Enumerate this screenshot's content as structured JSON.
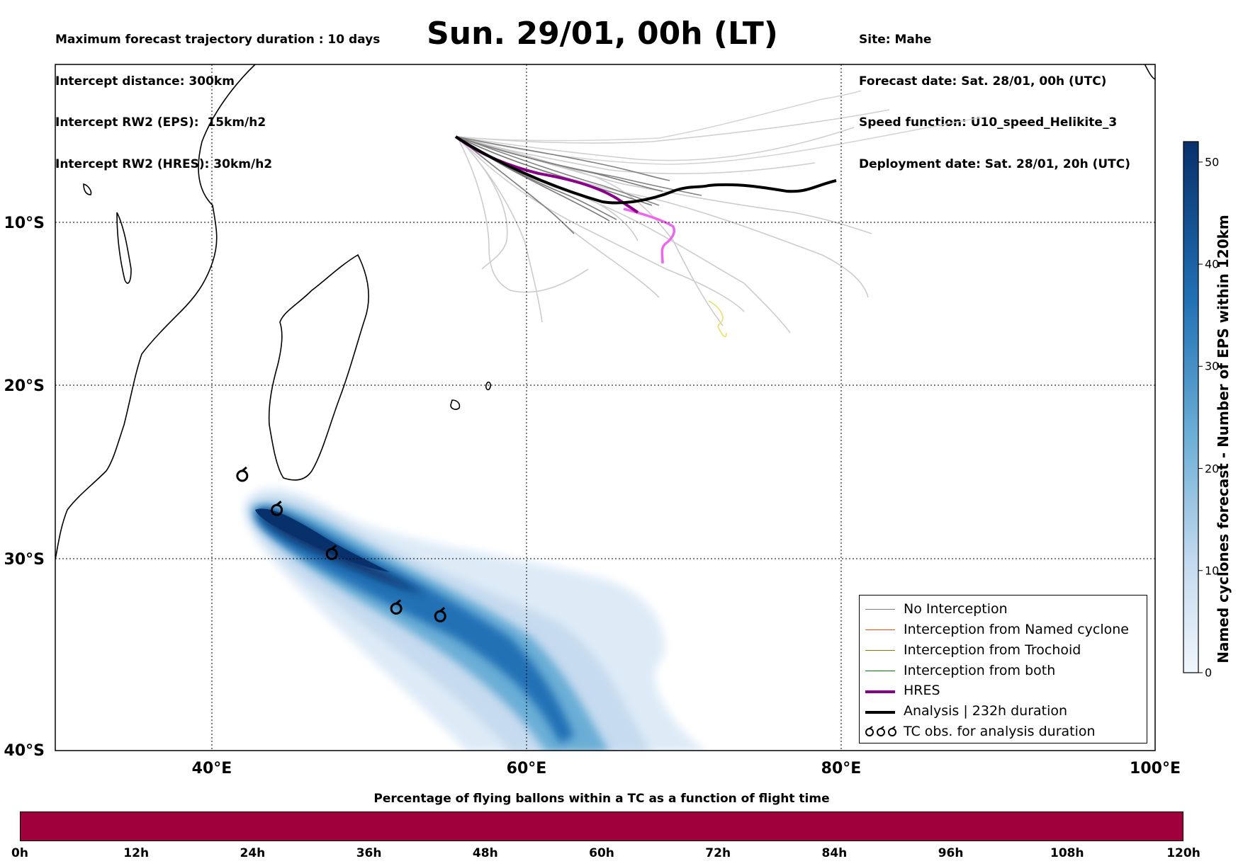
{
  "header": {
    "left_lines": [
      "Maximum forecast trajectory duration : 10 days",
      "Intercept distance: 300km",
      "Intercept RW2 (EPS):  15km/h2",
      "Intercept RW2 (HRES): 30km/h2"
    ],
    "title": "Sun. 29/01, 00h (LT)",
    "right_lines": [
      "Site: Mahe",
      "Forecast date: Sat. 28/01, 00h (UTC)",
      "Speed function: U10_speed_Helikite_3",
      "Deployment date: Sat. 28/01, 20h (UTC)"
    ]
  },
  "map": {
    "lon_labels": [
      "40°E",
      "60°E",
      "80°E",
      "100°E"
    ],
    "lat_labels": [
      "10°S",
      "20°S",
      "30°S",
      "40°S"
    ],
    "extent": {
      "lon": [
        30,
        100
      ],
      "lat": [
        -40,
        -1
      ]
    },
    "colors": {
      "no_interception": "#808080",
      "named_cyclone": "#ff4500",
      "trochoid": "#808000",
      "both": "#008000",
      "hres": "#8b008b",
      "analysis": "#000000",
      "density_dark": "#08306b",
      "density_light": "#deebf7"
    }
  },
  "legend": {
    "items": [
      {
        "label": "No Interception",
        "color": "#808080",
        "style": "thin"
      },
      {
        "label": "Interception from Named cyclone",
        "color": "#ff4500",
        "style": "thin"
      },
      {
        "label": "Interception from Trochoid",
        "color": "#808000",
        "style": "thin"
      },
      {
        "label": "Interception from both",
        "color": "#008000",
        "style": "thin"
      },
      {
        "label": "HRES",
        "color": "#8b008b",
        "style": "thick"
      },
      {
        "label": "Analysis | 232h duration",
        "color": "#000000",
        "style": "thick"
      },
      {
        "label": "TC obs. for analysis duration",
        "color": "#000000",
        "style": "symbol"
      }
    ]
  },
  "colorbar": {
    "label": "Named cyclones forecast - Number of EPS within 120km",
    "ticks": [
      "0",
      "10",
      "20",
      "30",
      "40",
      "50"
    ],
    "max": 52
  },
  "bottom_bar": {
    "title": "Percentage of flying ballons within a TC as a function of flight time",
    "ticks": [
      "0h",
      "12h",
      "24h",
      "36h",
      "48h",
      "60h",
      "72h",
      "84h",
      "96h",
      "108h",
      "120h"
    ],
    "fill_color": "#a0003c"
  },
  "tc_observations": [
    {
      "lon": 41.9,
      "lat": -25.7
    },
    {
      "lon": 44.1,
      "lat": -27.6
    },
    {
      "lon": 47.6,
      "lat": -30.0
    },
    {
      "lon": 51.7,
      "lat": -32.9
    },
    {
      "lon": 54.5,
      "lat": -33.3
    }
  ]
}
